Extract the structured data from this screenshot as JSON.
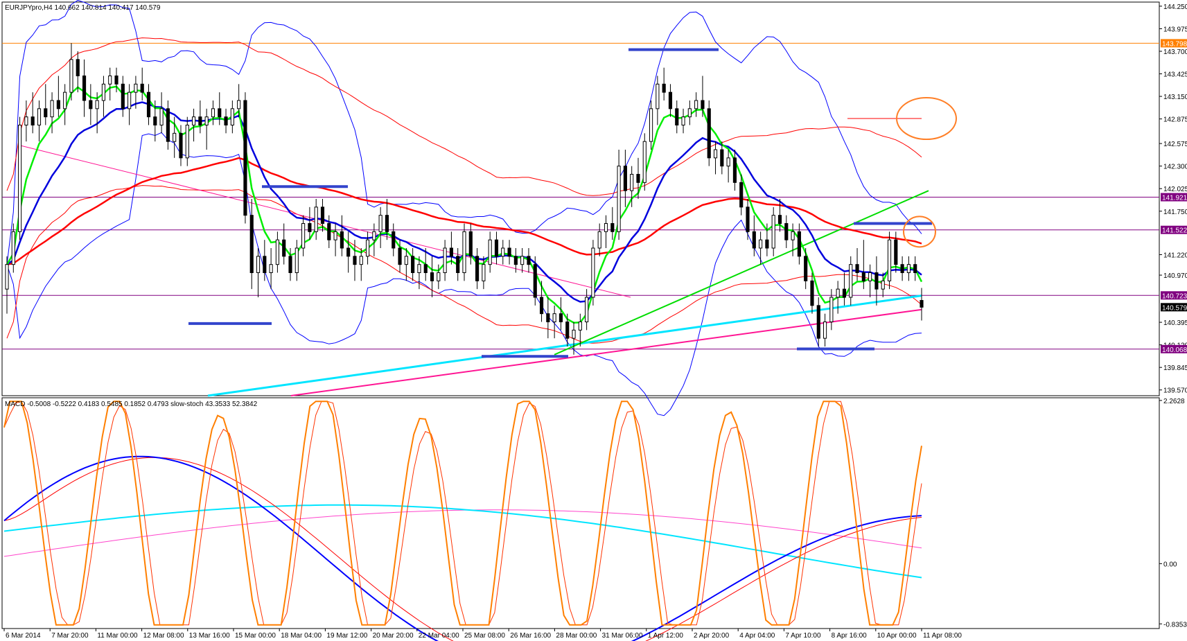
{
  "main_header": "EURJPYpro,H4  140.662 140.814 140.417 140.579",
  "sub_header": "MACD -0.5008 -0.5222 0.4183 0.5485 0.1852 0.4793  slow-stoch 43.3533 52.3842",
  "colors": {
    "candle": "#000000",
    "bollinger": "#0000ff",
    "ma_fast": "#00ee00",
    "ma_mid": "#0000dd",
    "ma_slow": "#ff0000",
    "env": "#ff0000",
    "trend_cyan": "#00e5ff",
    "trend_magenta": "#ff1493",
    "trend_green": "#00dd00",
    "support_blue": "#3344cc",
    "hline_purple": "#800080",
    "hline_orange": "#ff8000",
    "annot_orange": "#ff7f27",
    "macd": "#0000ff",
    "macd_signal": "#ff0000",
    "stoch": "#ff7f00",
    "stoch_signal": "#ff3300"
  },
  "chart_data": [
    {
      "type": "candlestick",
      "symbol": "EURJPYpro",
      "timeframe": "H4",
      "ohlc_last": [
        140.662,
        140.814,
        140.417,
        140.579
      ],
      "ylim": [
        139.5,
        144.3
      ],
      "price_ticks": [
        "144.250",
        "143.975",
        "143.700",
        "143.425",
        "143.150",
        "142.875",
        "142.575",
        "142.300",
        "142.025",
        "141.750",
        "141.220",
        "140.970",
        "140.395",
        "140.120",
        "139.845",
        "139.570"
      ],
      "x_labels": [
        "6 Mar 2014",
        "7 Mar 20:00",
        "11 Mar 00:00",
        "12 Mar 08:00",
        "13 Mar 16:00",
        "15 Mar 00:00",
        "18 Mar 04:00",
        "19 Mar 12:00",
        "20 Mar 20:00",
        "22 Mar 04:00",
        "25 Mar 08:00",
        "26 Mar 16:00",
        "28 Mar 00:00",
        "31 Mar 06:00",
        "1 Apr 12:00",
        "2 Apr 20:00",
        "4 Apr 04:00",
        "7 Apr 10:00",
        "8 Apr 16:00",
        "10 Apr 00:00",
        "11 Apr 08:00"
      ],
      "price_level_labels": [
        {
          "value": 143.798,
          "text": "143.798",
          "color": "#ff8000"
        },
        {
          "value": 141.921,
          "text": "141.921",
          "color": "#800080"
        },
        {
          "value": 141.522,
          "text": "141.522",
          "color": "#800080"
        },
        {
          "value": 140.723,
          "text": "140.723",
          "color": "#800080"
        },
        {
          "value": 140.579,
          "text": "140.579",
          "color": "#000000"
        },
        {
          "value": 140.068,
          "text": "140.068",
          "color": "#800080"
        }
      ],
      "candles": [
        [
          140.8,
          141.2,
          140.5,
          141.1
        ],
        [
          141.1,
          141.6,
          141.0,
          141.5
        ],
        [
          141.5,
          142.9,
          141.4,
          142.8
        ],
        [
          142.8,
          143.1,
          142.6,
          142.9
        ],
        [
          142.9,
          143.2,
          142.7,
          142.8
        ],
        [
          142.8,
          143.1,
          142.6,
          143.0
        ],
        [
          143.0,
          143.3,
          142.8,
          142.9
        ],
        [
          142.9,
          143.2,
          142.7,
          143.1
        ],
        [
          143.1,
          143.4,
          142.9,
          143.0
        ],
        [
          143.0,
          143.3,
          142.8,
          143.2
        ],
        [
          143.2,
          143.8,
          143.1,
          143.6
        ],
        [
          143.6,
          143.7,
          143.2,
          143.4
        ],
        [
          143.4,
          143.6,
          142.9,
          143.1
        ],
        [
          143.1,
          143.3,
          142.8,
          143.0
        ],
        [
          143.0,
          143.2,
          142.7,
          143.1
        ],
        [
          143.1,
          143.4,
          142.9,
          143.3
        ],
        [
          143.3,
          143.5,
          143.1,
          143.4
        ],
        [
          143.4,
          143.5,
          143.2,
          143.3
        ],
        [
          143.3,
          143.4,
          142.9,
          143.0
        ],
        [
          143.0,
          143.3,
          142.8,
          143.2
        ],
        [
          143.2,
          143.4,
          143.0,
          143.3
        ],
        [
          143.3,
          143.5,
          143.1,
          143.2
        ],
        [
          143.2,
          143.3,
          142.8,
          142.9
        ],
        [
          142.9,
          143.1,
          142.6,
          142.8
        ],
        [
          142.8,
          143.2,
          142.7,
          143.0
        ],
        [
          143.0,
          143.1,
          142.5,
          142.6
        ],
        [
          142.6,
          142.9,
          142.4,
          142.7
        ],
        [
          142.7,
          142.8,
          142.3,
          142.4
        ],
        [
          142.4,
          142.9,
          142.3,
          142.8
        ],
        [
          142.8,
          143.0,
          142.6,
          142.9
        ],
        [
          142.9,
          143.1,
          142.7,
          142.8
        ],
        [
          142.8,
          143.0,
          142.5,
          142.9
        ],
        [
          142.9,
          143.1,
          142.8,
          143.0
        ],
        [
          143.0,
          143.2,
          142.8,
          142.9
        ],
        [
          142.9,
          143.0,
          142.7,
          142.8
        ],
        [
          142.8,
          143.1,
          142.7,
          143.0
        ],
        [
          143.0,
          143.3,
          142.9,
          143.1
        ],
        [
          143.1,
          143.2,
          141.6,
          141.7
        ],
        [
          141.7,
          141.9,
          140.8,
          141.0
        ],
        [
          141.0,
          141.3,
          140.7,
          141.2
        ],
        [
          141.2,
          141.4,
          140.9,
          141.0
        ],
        [
          141.0,
          141.3,
          140.8,
          141.1
        ],
        [
          141.1,
          141.5,
          141.0,
          141.4
        ],
        [
          141.4,
          141.6,
          141.1,
          141.2
        ],
        [
          141.2,
          141.3,
          140.9,
          141.0
        ],
        [
          141.0,
          141.4,
          140.9,
          141.3
        ],
        [
          141.3,
          141.7,
          141.2,
          141.6
        ],
        [
          141.6,
          141.8,
          141.4,
          141.5
        ],
        [
          141.5,
          141.9,
          141.4,
          141.8
        ],
        [
          141.8,
          141.9,
          141.5,
          141.6
        ],
        [
          141.6,
          141.7,
          141.3,
          141.4
        ],
        [
          141.4,
          141.6,
          141.2,
          141.5
        ],
        [
          141.5,
          141.7,
          141.2,
          141.3
        ],
        [
          141.3,
          141.5,
          141.0,
          141.2
        ],
        [
          141.2,
          141.4,
          140.9,
          141.1
        ],
        [
          141.1,
          141.3,
          140.9,
          141.2
        ],
        [
          141.2,
          141.5,
          141.1,
          141.4
        ],
        [
          141.4,
          141.6,
          141.2,
          141.5
        ],
        [
          141.5,
          141.8,
          141.3,
          141.7
        ],
        [
          141.7,
          141.9,
          141.4,
          141.5
        ],
        [
          141.5,
          141.6,
          141.2,
          141.3
        ],
        [
          141.3,
          141.4,
          141.0,
          141.1
        ],
        [
          141.1,
          141.3,
          140.9,
          141.2
        ],
        [
          141.2,
          141.3,
          140.9,
          141.0
        ],
        [
          141.0,
          141.2,
          140.8,
          141.1
        ],
        [
          141.1,
          141.3,
          140.9,
          141.0
        ],
        [
          141.0,
          141.2,
          140.7,
          140.9
        ],
        [
          140.9,
          141.1,
          140.8,
          141.0
        ],
        [
          141.0,
          141.4,
          140.9,
          141.3
        ],
        [
          141.3,
          141.5,
          141.1,
          141.2
        ],
        [
          141.2,
          141.3,
          140.9,
          141.0
        ],
        [
          141.0,
          141.6,
          140.9,
          141.5
        ],
        [
          141.5,
          141.6,
          141.1,
          141.2
        ],
        [
          141.2,
          141.3,
          140.8,
          140.9
        ],
        [
          140.9,
          141.2,
          140.8,
          141.1
        ],
        [
          141.1,
          141.5,
          141.0,
          141.4
        ],
        [
          141.4,
          141.5,
          141.1,
          141.2
        ],
        [
          141.2,
          141.4,
          141.1,
          141.3
        ],
        [
          141.3,
          141.4,
          141.1,
          141.2
        ],
        [
          141.2,
          141.3,
          141.0,
          141.1
        ],
        [
          141.1,
          141.3,
          141.0,
          141.2
        ],
        [
          141.2,
          141.3,
          141.0,
          141.1
        ],
        [
          141.1,
          141.2,
          140.6,
          140.7
        ],
        [
          140.7,
          140.9,
          140.4,
          140.5
        ],
        [
          140.5,
          140.7,
          140.2,
          140.4
        ],
        [
          140.4,
          140.6,
          140.2,
          140.5
        ],
        [
          140.5,
          140.7,
          140.3,
          140.4
        ],
        [
          140.4,
          140.5,
          140.1,
          140.2
        ],
        [
          140.2,
          140.4,
          140.0,
          140.3
        ],
        [
          140.3,
          140.5,
          140.1,
          140.4
        ],
        [
          140.4,
          140.8,
          140.3,
          140.7
        ],
        [
          140.7,
          141.4,
          140.6,
          141.3
        ],
        [
          141.3,
          141.6,
          141.2,
          141.5
        ],
        [
          141.5,
          141.7,
          141.3,
          141.6
        ],
        [
          141.6,
          141.8,
          141.4,
          141.5
        ],
        [
          141.5,
          142.5,
          141.4,
          142.3
        ],
        [
          142.3,
          142.5,
          141.8,
          142.0
        ],
        [
          142.0,
          142.3,
          141.8,
          142.2
        ],
        [
          142.2,
          142.4,
          141.9,
          142.1
        ],
        [
          142.1,
          142.7,
          142.0,
          142.6
        ],
        [
          142.6,
          143.1,
          142.5,
          143.0
        ],
        [
          143.0,
          143.4,
          142.8,
          143.3
        ],
        [
          143.3,
          143.5,
          143.1,
          143.2
        ],
        [
          143.2,
          143.3,
          142.9,
          143.0
        ],
        [
          143.0,
          143.1,
          142.7,
          142.8
        ],
        [
          142.8,
          143.0,
          142.7,
          142.9
        ],
        [
          142.9,
          143.1,
          142.8,
          143.0
        ],
        [
          143.0,
          143.2,
          142.9,
          143.1
        ],
        [
          143.1,
          143.4,
          142.9,
          143.0
        ],
        [
          143.0,
          143.1,
          142.3,
          142.4
        ],
        [
          142.4,
          142.6,
          142.2,
          142.5
        ],
        [
          142.5,
          142.6,
          142.2,
          142.3
        ],
        [
          142.3,
          142.5,
          142.1,
          142.4
        ],
        [
          142.4,
          142.5,
          142.0,
          142.1
        ],
        [
          142.1,
          142.2,
          141.7,
          141.8
        ],
        [
          141.8,
          141.9,
          141.4,
          141.5
        ],
        [
          141.5,
          141.7,
          141.2,
          141.3
        ],
        [
          141.3,
          141.5,
          141.1,
          141.4
        ],
        [
          141.4,
          141.6,
          141.2,
          141.3
        ],
        [
          141.3,
          141.8,
          141.2,
          141.7
        ],
        [
          141.7,
          141.9,
          141.5,
          141.6
        ],
        [
          141.6,
          141.7,
          141.3,
          141.4
        ],
        [
          141.4,
          141.6,
          141.2,
          141.5
        ],
        [
          141.5,
          141.6,
          141.1,
          141.2
        ],
        [
          141.2,
          141.3,
          140.8,
          140.9
        ],
        [
          140.9,
          141.0,
          140.5,
          140.6
        ],
        [
          140.6,
          140.7,
          140.1,
          140.2
        ],
        [
          140.2,
          140.5,
          140.1,
          140.4
        ],
        [
          140.4,
          140.8,
          140.3,
          140.7
        ],
        [
          140.7,
          140.9,
          140.5,
          140.8
        ],
        [
          140.8,
          141.0,
          140.6,
          140.7
        ],
        [
          140.7,
          141.2,
          140.6,
          141.1
        ],
        [
          141.1,
          141.3,
          140.9,
          141.0
        ],
        [
          141.0,
          141.4,
          140.8,
          140.9
        ],
        [
          140.9,
          141.1,
          140.7,
          141.0
        ],
        [
          141.0,
          141.2,
          140.6,
          140.8
        ],
        [
          140.8,
          141.0,
          140.7,
          140.9
        ],
        [
          140.9,
          141.5,
          140.8,
          141.4
        ],
        [
          141.4,
          141.5,
          141.0,
          141.1
        ],
        [
          141.1,
          141.2,
          140.9,
          141.0
        ],
        [
          141.0,
          141.2,
          140.9,
          141.1
        ],
        [
          141.1,
          141.2,
          140.9,
          141.0
        ],
        [
          140.662,
          140.814,
          140.417,
          140.579
        ]
      ]
    },
    {
      "type": "line",
      "indicator": "MACD / slow-stoch",
      "ylim": [
        -0.9,
        2.3
      ],
      "y_ticks": [
        "2.2628",
        "0.00",
        "-0.8353"
      ]
    }
  ]
}
